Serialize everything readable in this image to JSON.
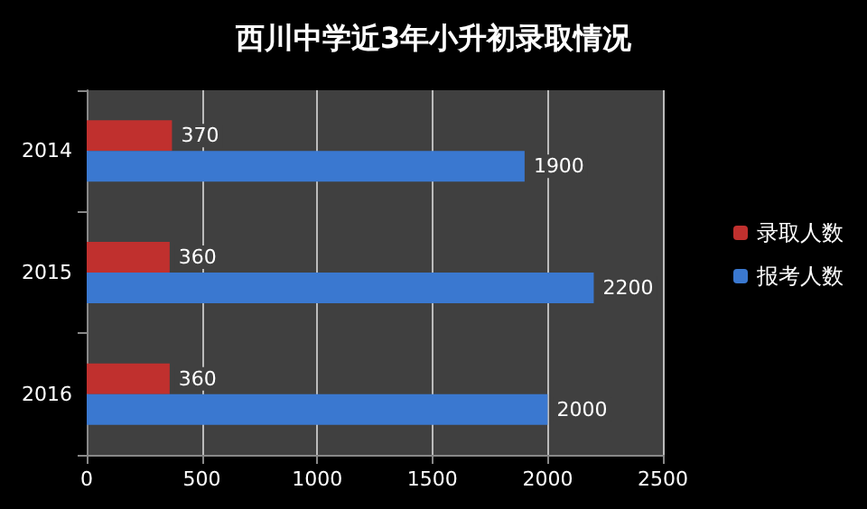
{
  "chart_data": {
    "type": "bar",
    "orientation": "horizontal",
    "title": "西川中学近3年小升初录取情况",
    "categories": [
      "2014",
      "2015",
      "2016"
    ],
    "series": [
      {
        "name": "录取人数",
        "color": "#c0302e",
        "values": [
          370,
          360,
          360
        ]
      },
      {
        "name": "报考人数",
        "color": "#3a78d0",
        "values": [
          1900,
          2200,
          2000
        ]
      }
    ],
    "xlim": [
      0,
      2500
    ],
    "xticks": [
      0,
      500,
      1000,
      1500,
      2000,
      2500
    ],
    "grid": "x",
    "legend": "right",
    "data_labels": true
  }
}
